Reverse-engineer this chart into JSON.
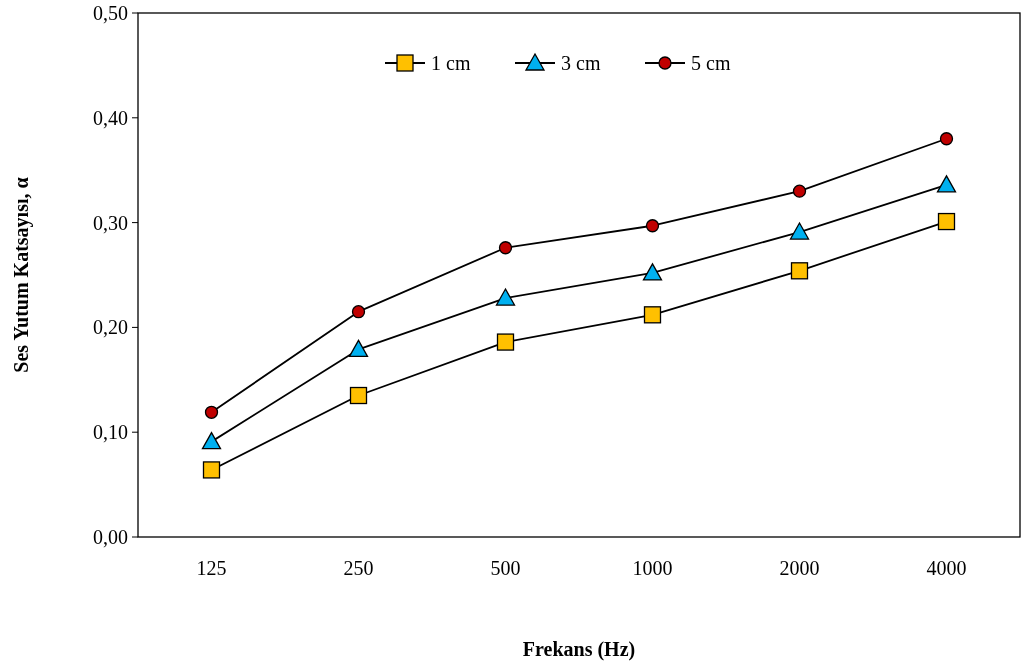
{
  "chart_data": {
    "type": "line",
    "xlabel": "Frekans (Hz)",
    "ylabel": "Ses Yutum Katsayısı, α",
    "categories": [
      "125",
      "250",
      "500",
      "1000",
      "2000",
      "4000"
    ],
    "ylim": [
      0,
      0.5
    ],
    "yticks": [
      {
        "value": 0,
        "label": "0,00"
      },
      {
        "value": 0.1,
        "label": "0,10"
      },
      {
        "value": 0.2,
        "label": "0,20"
      },
      {
        "value": 0.3,
        "label": "0,30"
      },
      {
        "value": 0.4,
        "label": "0,40"
      },
      {
        "value": 0.5,
        "label": "0,50"
      }
    ],
    "grid": false,
    "legend": "top",
    "line_style": "solid",
    "series": [
      {
        "name": "1 cm",
        "color": "#ffc000",
        "marker": "square",
        "values": [
          0.064,
          0.135,
          0.186,
          0.212,
          0.254,
          0.301
        ]
      },
      {
        "name": "3 cm",
        "color": "#00b0f0",
        "marker": "triangle",
        "values": [
          0.091,
          0.179,
          0.228,
          0.252,
          0.291,
          0.336
        ]
      },
      {
        "name": "5 cm",
        "color": "#c00000",
        "marker": "circle",
        "values": [
          0.119,
          0.215,
          0.276,
          0.297,
          0.33,
          0.38
        ]
      }
    ]
  }
}
